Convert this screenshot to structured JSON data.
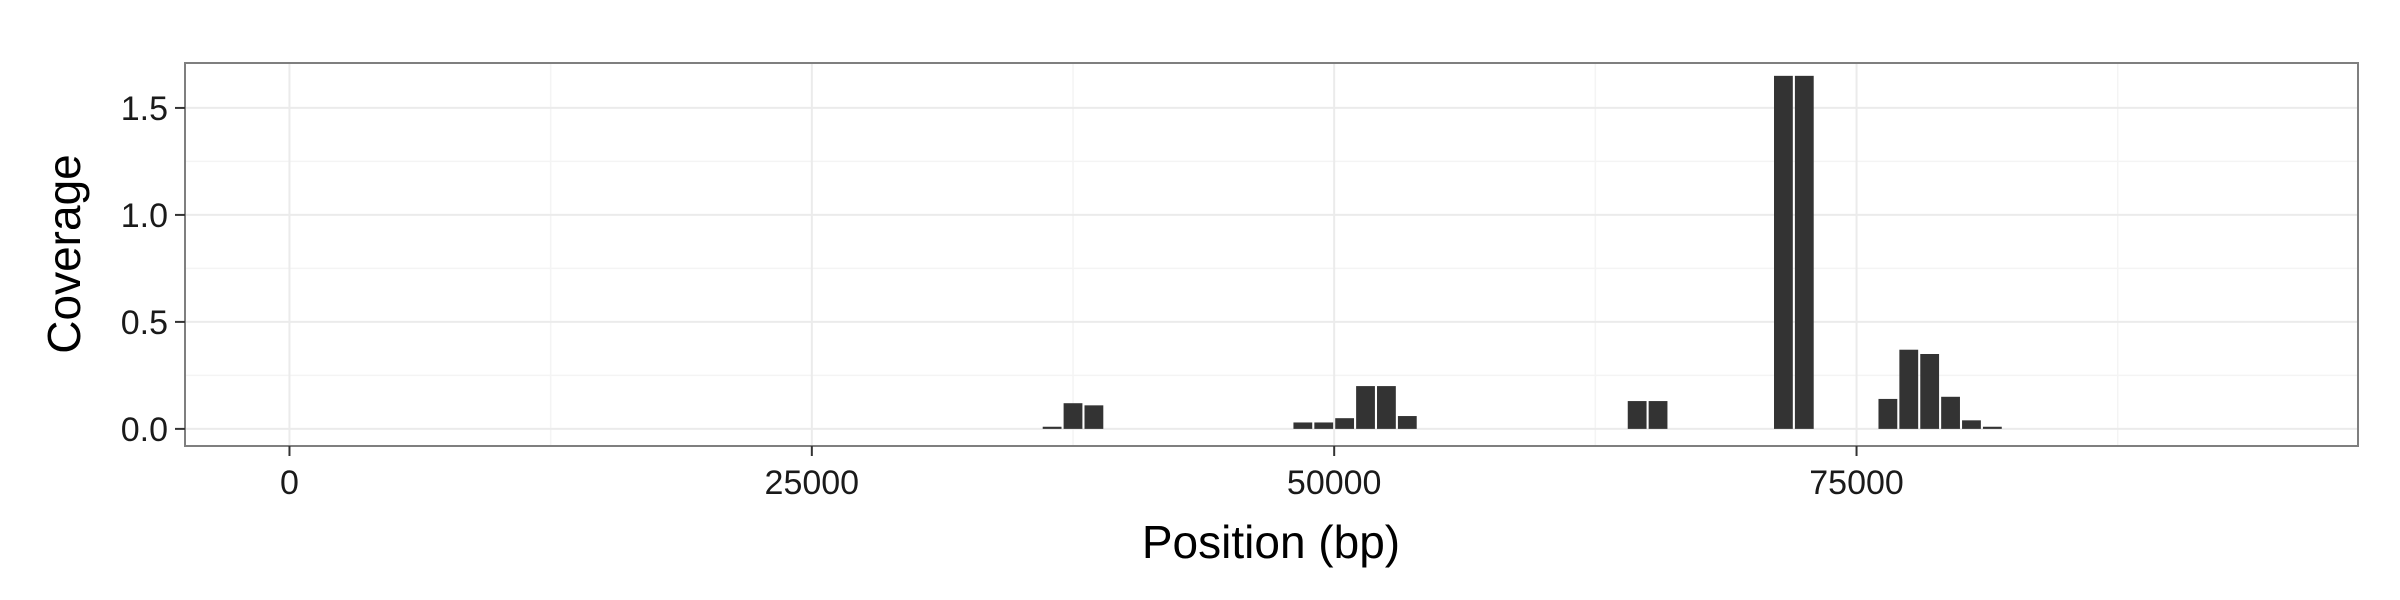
{
  "chart_data": {
    "type": "bar",
    "title": "",
    "xlabel": "Position (bp)",
    "ylabel": "Coverage",
    "xlim": [
      -5000,
      99000
    ],
    "ylim": [
      -0.08,
      1.71
    ],
    "x_ticks": [
      0,
      25000,
      50000,
      75000
    ],
    "x_tick_labels": [
      "0",
      "25000",
      "50000",
      "75000"
    ],
    "y_ticks": [
      0.0,
      0.5,
      1.0,
      1.5
    ],
    "y_tick_labels": [
      "0.0",
      "0.5",
      "1.0",
      "1.5"
    ],
    "grid": true,
    "bar_width": 900,
    "bar_color": "#333333",
    "panel_border_color": "#7f7f7f",
    "grid_major_color": "#ebebeb",
    "grid_minor_color": "#f4f4f4",
    "x": [
      36500,
      37500,
      38500,
      48500,
      49500,
      50500,
      51500,
      52500,
      53500,
      64500,
      65500,
      71500,
      72500,
      76500,
      77500,
      78500,
      79500,
      80500,
      81500
    ],
    "values": [
      0.01,
      0.12,
      0.11,
      0.03,
      0.03,
      0.05,
      0.2,
      0.2,
      0.06,
      0.13,
      0.13,
      1.65,
      1.65,
      0.14,
      0.37,
      0.35,
      0.15,
      0.04,
      0.01
    ]
  }
}
